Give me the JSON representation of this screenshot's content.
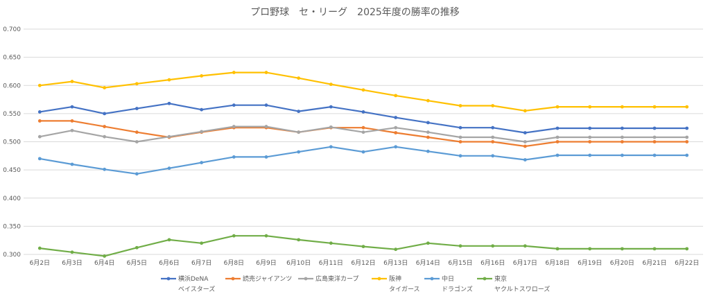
{
  "chart_data": {
    "type": "line",
    "title": "プロ野球　セ・リーグ　2025年度の勝率の推移",
    "xlabel": "",
    "ylabel": "",
    "ylim": [
      0.3,
      0.7
    ],
    "yticks": [
      "0.300",
      "0.350",
      "0.400",
      "0.450",
      "0.500",
      "0.550",
      "0.600",
      "0.650",
      "0.700"
    ],
    "grid": true,
    "legend_position": "bottom",
    "categories": [
      "6月2日",
      "6月3日",
      "6月4日",
      "6月5日",
      "6月6日",
      "6月7日",
      "6月8日",
      "6月9日",
      "6月10日",
      "6月11日",
      "6月12日",
      "6月13日",
      "6月14日",
      "6月15日",
      "6月16日",
      "6月17日",
      "6月18日",
      "6月19日",
      "6月20日",
      "6月21日",
      "6月22日"
    ],
    "series": [
      {
        "name": "横浜DeNA",
        "name_line2": "ベイスターズ",
        "color": "#4472c4",
        "values": [
          0.553,
          0.562,
          0.55,
          0.559,
          0.568,
          0.557,
          0.565,
          0.565,
          0.554,
          0.562,
          0.553,
          0.543,
          0.534,
          0.525,
          0.525,
          0.516,
          0.524,
          0.524,
          0.524,
          0.524,
          0.524
        ]
      },
      {
        "name": "読売ジャイアンツ",
        "name_line2": "",
        "color": "#ed7d31",
        "values": [
          0.537,
          0.537,
          0.527,
          0.517,
          0.508,
          0.517,
          0.525,
          0.525,
          0.517,
          0.525,
          0.525,
          0.516,
          0.508,
          0.5,
          0.5,
          0.492,
          0.5,
          0.5,
          0.5,
          0.5,
          0.5
        ]
      },
      {
        "name": "広島東洋カープ",
        "name_line2": "",
        "color": "#a5a5a5",
        "values": [
          0.509,
          0.52,
          0.509,
          0.5,
          0.509,
          0.518,
          0.527,
          0.527,
          0.517,
          0.526,
          0.517,
          0.525,
          0.517,
          0.508,
          0.508,
          0.5,
          0.508,
          0.508,
          0.508,
          0.508,
          0.508
        ]
      },
      {
        "name": "阪神",
        "name_line2": "タイガース",
        "color": "#ffc000",
        "values": [
          0.6,
          0.607,
          0.596,
          0.603,
          0.61,
          0.617,
          0.623,
          0.623,
          0.613,
          0.602,
          0.592,
          0.582,
          0.573,
          0.564,
          0.564,
          0.555,
          0.562,
          0.562,
          0.562,
          0.562,
          0.562
        ]
      },
      {
        "name": "中日",
        "name_line2": "ドラゴンズ",
        "color": "#5b9bd5",
        "values": [
          0.47,
          0.46,
          0.451,
          0.443,
          0.453,
          0.463,
          0.473,
          0.473,
          0.482,
          0.491,
          0.482,
          0.491,
          0.483,
          0.475,
          0.475,
          0.468,
          0.476,
          0.476,
          0.476,
          0.476,
          0.476
        ]
      },
      {
        "name": "東京",
        "name_line2": "ヤクルトスワローズ",
        "color": "#70ad47",
        "values": [
          0.311,
          0.304,
          0.297,
          0.312,
          0.326,
          0.32,
          0.333,
          0.333,
          0.326,
          0.32,
          0.314,
          0.309,
          0.32,
          0.315,
          0.315,
          0.315,
          0.31,
          0.31,
          0.31,
          0.31,
          0.31
        ]
      }
    ]
  }
}
